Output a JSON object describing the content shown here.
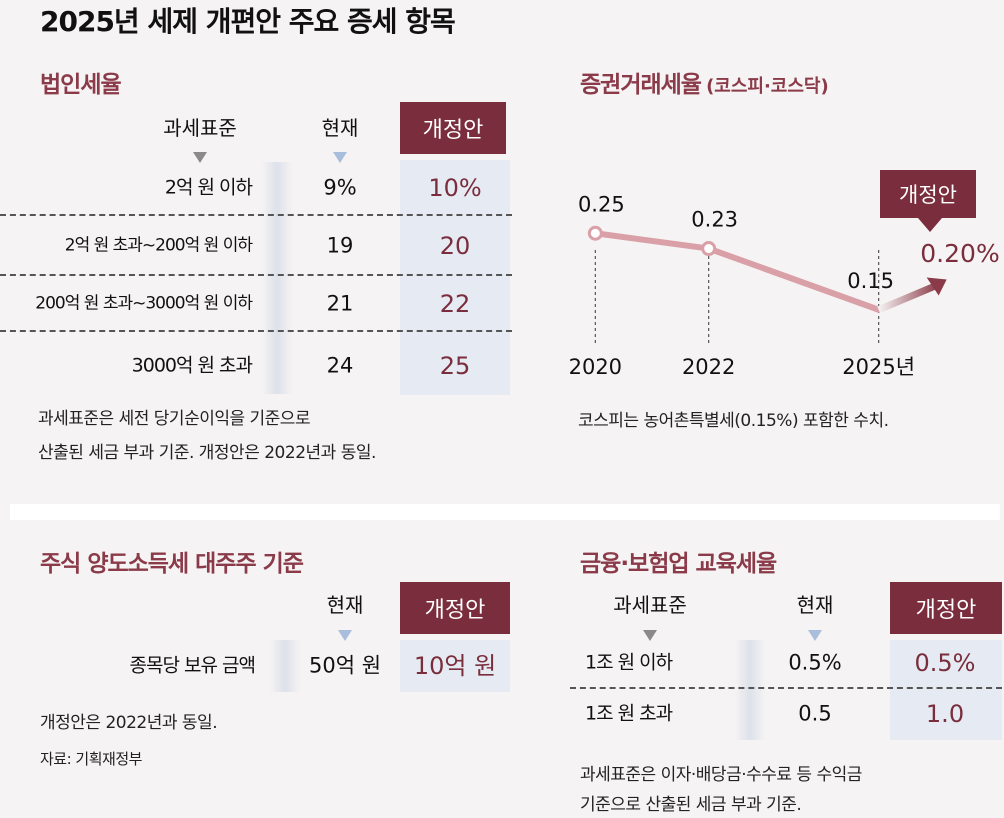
{
  "title": "2025년 세제 개편안 주요 증세 항목",
  "corporate_tax": {
    "heading": "법인세율",
    "columns": [
      "과세표준",
      "현재",
      "개정안"
    ],
    "rows": [
      [
        "2억 원 이하",
        "9%",
        "10%"
      ],
      [
        "2억 원 초과~200억 원 이하",
        "19",
        "20"
      ],
      [
        "200억 원 초과~3000억 원 이하",
        "21",
        "22"
      ],
      [
        "3000억 원 초과",
        "24",
        "25"
      ]
    ],
    "notes": [
      "과세표준은 세전 당기순이익을 기준으로",
      "산출된 세금 부과 기준. 개정안은 2022년과 동일."
    ]
  },
  "chart_data": {
    "type": "line",
    "title": "증권거래세율",
    "subtitle": "(코스피·코스닥)",
    "x": [
      2020,
      2022,
      2025
    ],
    "xlim": [
      2019.5,
      2027
    ],
    "xticks": [
      2020,
      2022,
      {
        "value": 2025,
        "label": "2025년"
      }
    ],
    "ylim": [
      0.1,
      0.3
    ],
    "series": [
      {
        "name": "증권거래세율",
        "color": "#d9a0a8",
        "values": [
          0.25,
          0.23,
          0.15
        ]
      }
    ],
    "proposal": {
      "label": "개정안",
      "value": 0.2,
      "value_label": "0.20%"
    },
    "note": "코스피는 농어촌특별세(0.15%) 포함한 수치."
  },
  "capital_gains": {
    "heading": "주식 양도소득세 대주주 기준",
    "columns": [
      "현재",
      "개정안"
    ],
    "row": [
      "종목당 보유 금액",
      "50억 원",
      "10억 원"
    ],
    "note": "개정안은 2022년과 동일.",
    "source": "자료: 기획재정부"
  },
  "education_tax": {
    "heading": "금융·보험업 교육세율",
    "columns": [
      "과세표준",
      "현재",
      "개정안"
    ],
    "rows": [
      [
        "1조 원 이하",
        "0.5%",
        "0.5%"
      ],
      [
        "1조 원 초과",
        "0.5",
        "1.0"
      ]
    ],
    "notes": [
      "과세표준은 이자·배당금·수수료 등 수익금",
      "기준으로 산출된 세금 부과 기준."
    ]
  }
}
